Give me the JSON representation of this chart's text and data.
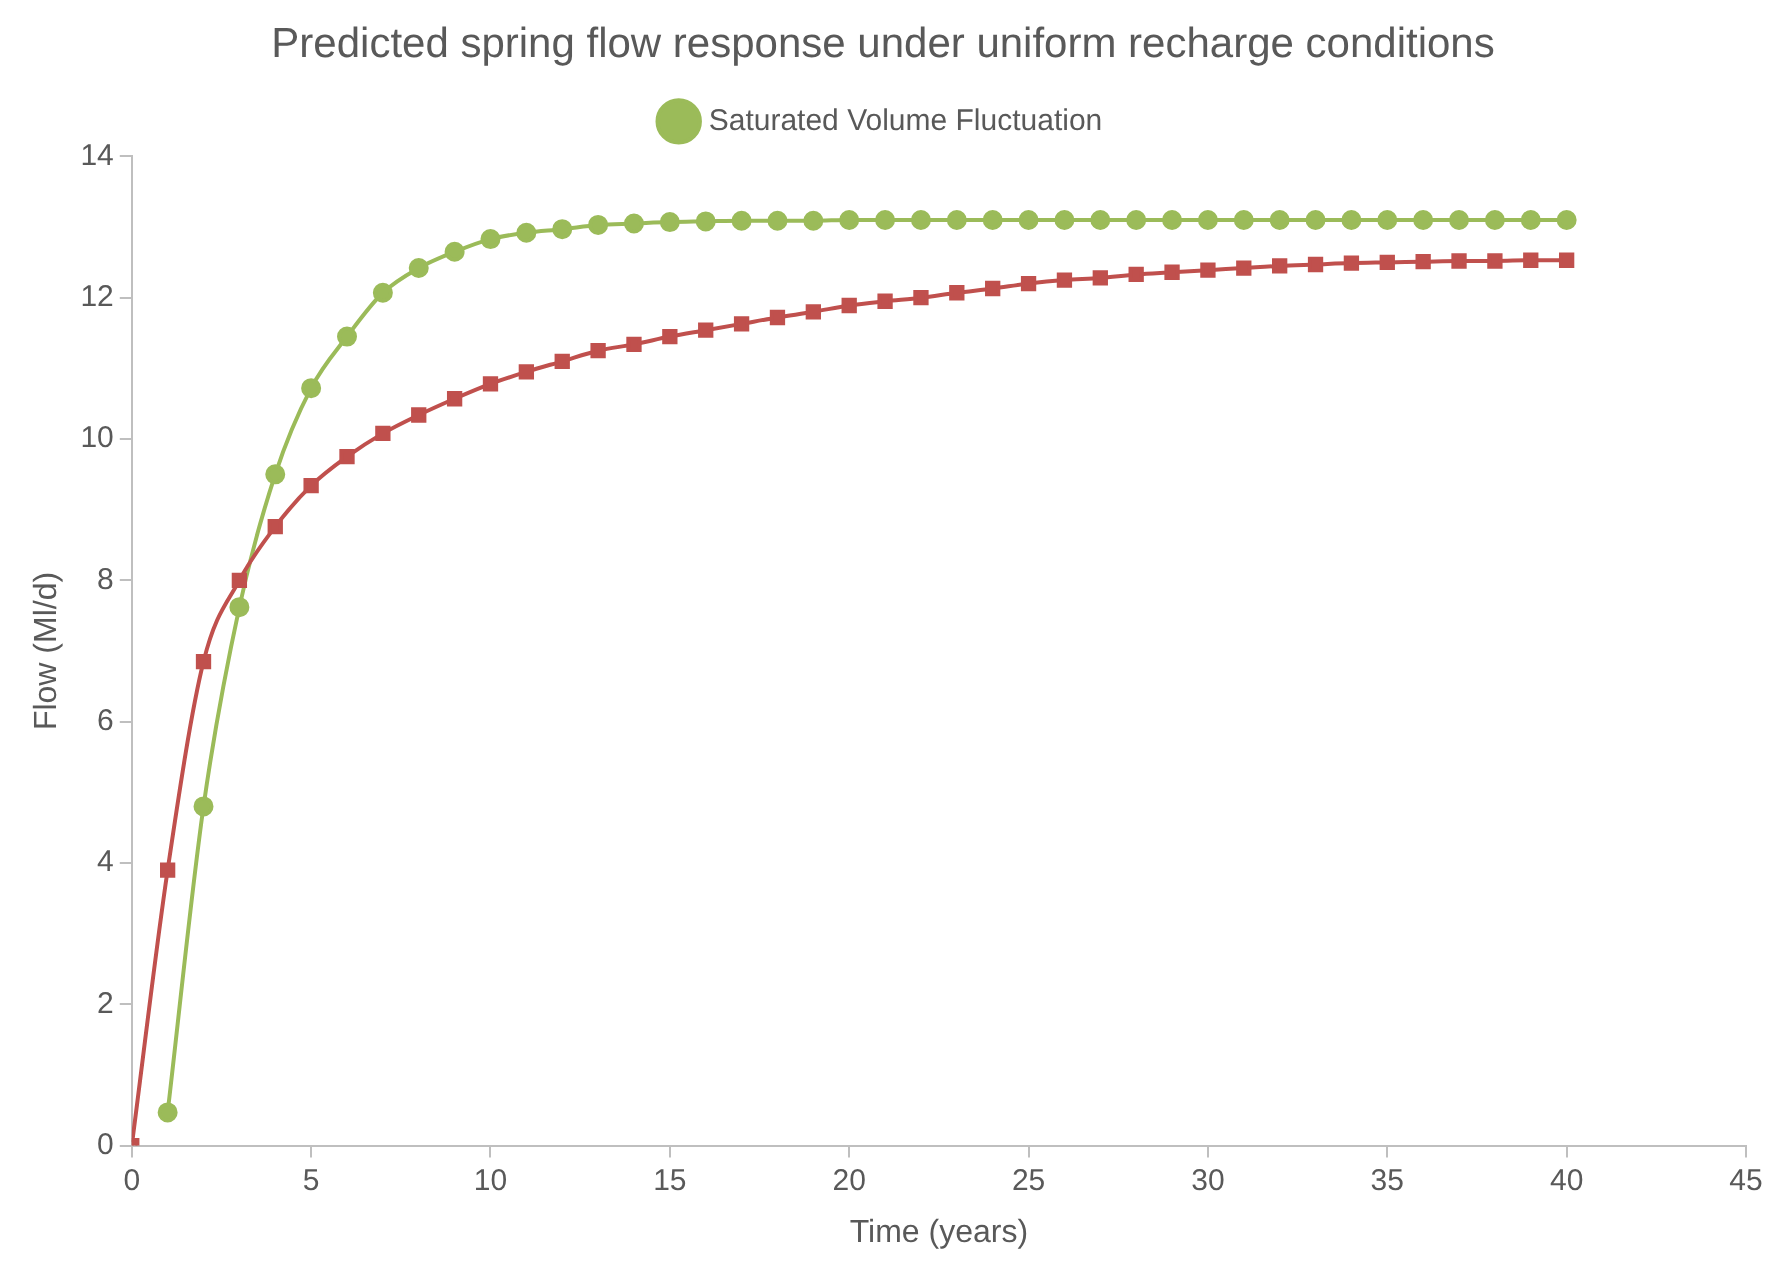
{
  "chart_data": {
    "type": "line",
    "title": "Predicted spring flow response under uniform recharge conditions",
    "xlabel": "Time (years)",
    "ylabel": "Flow (Ml/d)",
    "xlim": [
      0,
      45
    ],
    "xticks": [
      0,
      5,
      10,
      15,
      20,
      25,
      30,
      35,
      40,
      45
    ],
    "ylim": [
      0,
      14
    ],
    "yticks": [
      0,
      2,
      4,
      6,
      8,
      10,
      12,
      14
    ],
    "grid": false,
    "legend": "top",
    "line_style": "solid",
    "series": [
      {
        "color": "#c0504d",
        "marker": "square",
        "x": [
          0,
          1,
          2,
          3,
          4,
          5,
          6,
          7,
          8,
          9,
          10,
          11,
          12,
          13,
          14,
          15,
          16,
          17,
          18,
          19,
          20,
          21,
          22,
          23,
          24,
          25,
          26,
          27,
          28,
          29,
          30,
          31,
          32,
          33,
          34,
          35,
          36,
          37,
          38,
          39,
          40
        ],
        "values": [
          0,
          3.9,
          6.85,
          8.0,
          8.76,
          9.34,
          9.75,
          10.08,
          10.34,
          10.57,
          10.78,
          10.95,
          11.1,
          11.25,
          11.34,
          11.45,
          11.54,
          11.63,
          11.72,
          11.8,
          11.89,
          11.95,
          12.0,
          12.07,
          12.13,
          12.2,
          12.25,
          12.28,
          12.33,
          12.36,
          12.39,
          12.42,
          12.45,
          12.47,
          12.49,
          12.5,
          12.51,
          12.52,
          12.52,
          12.53,
          12.53
        ]
      },
      {
        "name": "Saturated Volume Fluctuation",
        "color": "#9bbb59",
        "marker": "circle",
        "x": [
          1,
          2,
          3,
          4,
          5,
          6,
          7,
          8,
          9,
          10,
          11,
          12,
          13,
          14,
          15,
          16,
          17,
          18,
          19,
          20,
          21,
          22,
          23,
          24,
          25,
          26,
          27,
          28,
          29,
          30,
          31,
          32,
          33,
          34,
          35,
          36,
          37,
          38,
          39,
          40
        ],
        "values": [
          0.47,
          4.8,
          7.62,
          9.5,
          10.72,
          11.45,
          12.07,
          12.42,
          12.65,
          12.83,
          12.92,
          12.97,
          13.03,
          13.05,
          13.07,
          13.08,
          13.09,
          13.09,
          13.09,
          13.1,
          13.1,
          13.1,
          13.1,
          13.1,
          13.1,
          13.1,
          13.1,
          13.1,
          13.1,
          13.1,
          13.1,
          13.1,
          13.1,
          13.1,
          13.1,
          13.1,
          13.1,
          13.1,
          13.1,
          13.1
        ]
      }
    ]
  }
}
